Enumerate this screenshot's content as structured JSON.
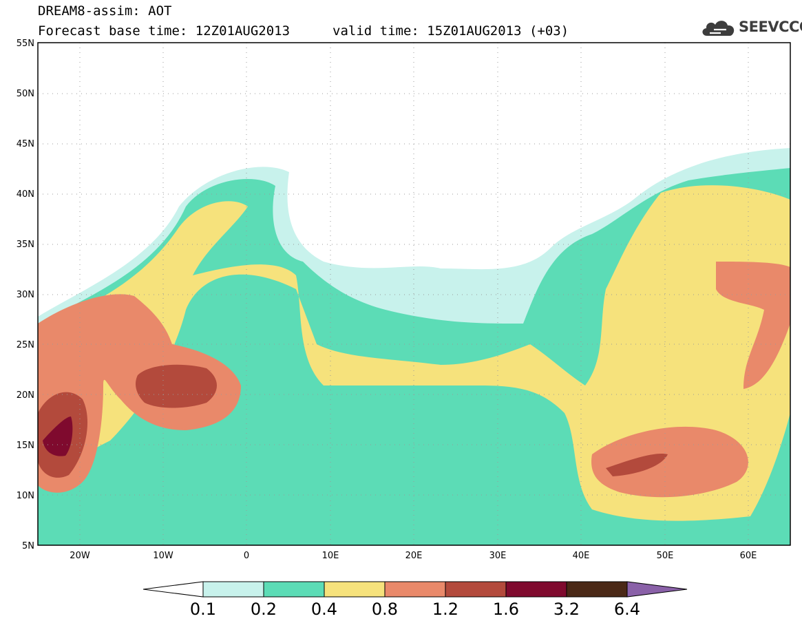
{
  "title": {
    "line1": "DREAM8-assim: AOT",
    "line2": "Forecast base time: 12Z01AUG2013",
    "valid": "valid time: 15Z01AUG2013 (+03)"
  },
  "logo": {
    "text": "SEEVCCC",
    "icon": "cloud-icon"
  },
  "axes": {
    "lon_min": -25,
    "lon_max": 65,
    "lat_min": 5,
    "lat_max": 55,
    "lat_labels": [
      "55N",
      "50N",
      "45N",
      "40N",
      "35N",
      "30N",
      "25N",
      "20N",
      "15N",
      "10N",
      "5N"
    ],
    "lat_values": [
      55,
      50,
      45,
      40,
      35,
      30,
      25,
      20,
      15,
      10,
      5
    ],
    "lon_labels": [
      "20W",
      "10W",
      "0",
      "10E",
      "20E",
      "30E",
      "40E",
      "50E",
      "60E"
    ],
    "lon_values": [
      -20,
      -10,
      0,
      10,
      20,
      30,
      40,
      50,
      60
    ],
    "grid": "dotted"
  },
  "legend": {
    "labels": [
      "0.1",
      "0.2",
      "0.4",
      "0.8",
      "1.2",
      "1.6",
      "3.2",
      "6.4"
    ],
    "colors": [
      "#ffffff",
      "#c8f2ec",
      "#5cdcb6",
      "#f6e27c",
      "#e9896a",
      "#b34a3c",
      "#7f0a2e",
      "#4a2816",
      "#8a61a8"
    ]
  }
}
